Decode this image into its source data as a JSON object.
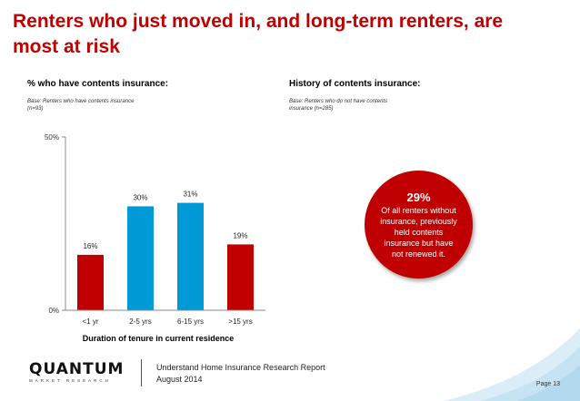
{
  "title": "Renters who just moved in, and long-term renters, are most at risk",
  "left_panel": {
    "heading": "% who have contents insurance:",
    "base": "Base: Renters who have contents insurance (n=93)"
  },
  "right_panel": {
    "heading": "History of contents insurance:",
    "base": "Base: Renters who do not have contents insurance (n=285)",
    "callout_value": "29%",
    "callout_text": "Of all renters without insurance, previously held contents insurance but have not renewed it."
  },
  "chart_data": {
    "type": "bar",
    "categories": [
      "<1 yr",
      "2-5 yrs",
      "6-15 yrs",
      ">15 yrs"
    ],
    "values": [
      16,
      30,
      31,
      19
    ],
    "value_labels": [
      "16%",
      "30%",
      "31%",
      "19%"
    ],
    "bar_colors": [
      "#c00000",
      "#0099d8",
      "#0099d8",
      "#c00000"
    ],
    "xlabel": "Duration of tenure in current residence",
    "ylabel": "",
    "ylim": [
      0,
      50
    ],
    "y_ticks": [
      {
        "value": 0,
        "label": "0%"
      },
      {
        "value": 50,
        "label": "50%"
      }
    ],
    "grid": false
  },
  "footer": {
    "logo_word": "QUANTUM",
    "logo_sub": "MARKET RESEARCH",
    "report_title": "Understand Home Insurance Research Report",
    "report_date": "August 2014",
    "page": "Page 13"
  },
  "colors": {
    "accent_red": "#c00000",
    "accent_blue": "#0099d8"
  }
}
